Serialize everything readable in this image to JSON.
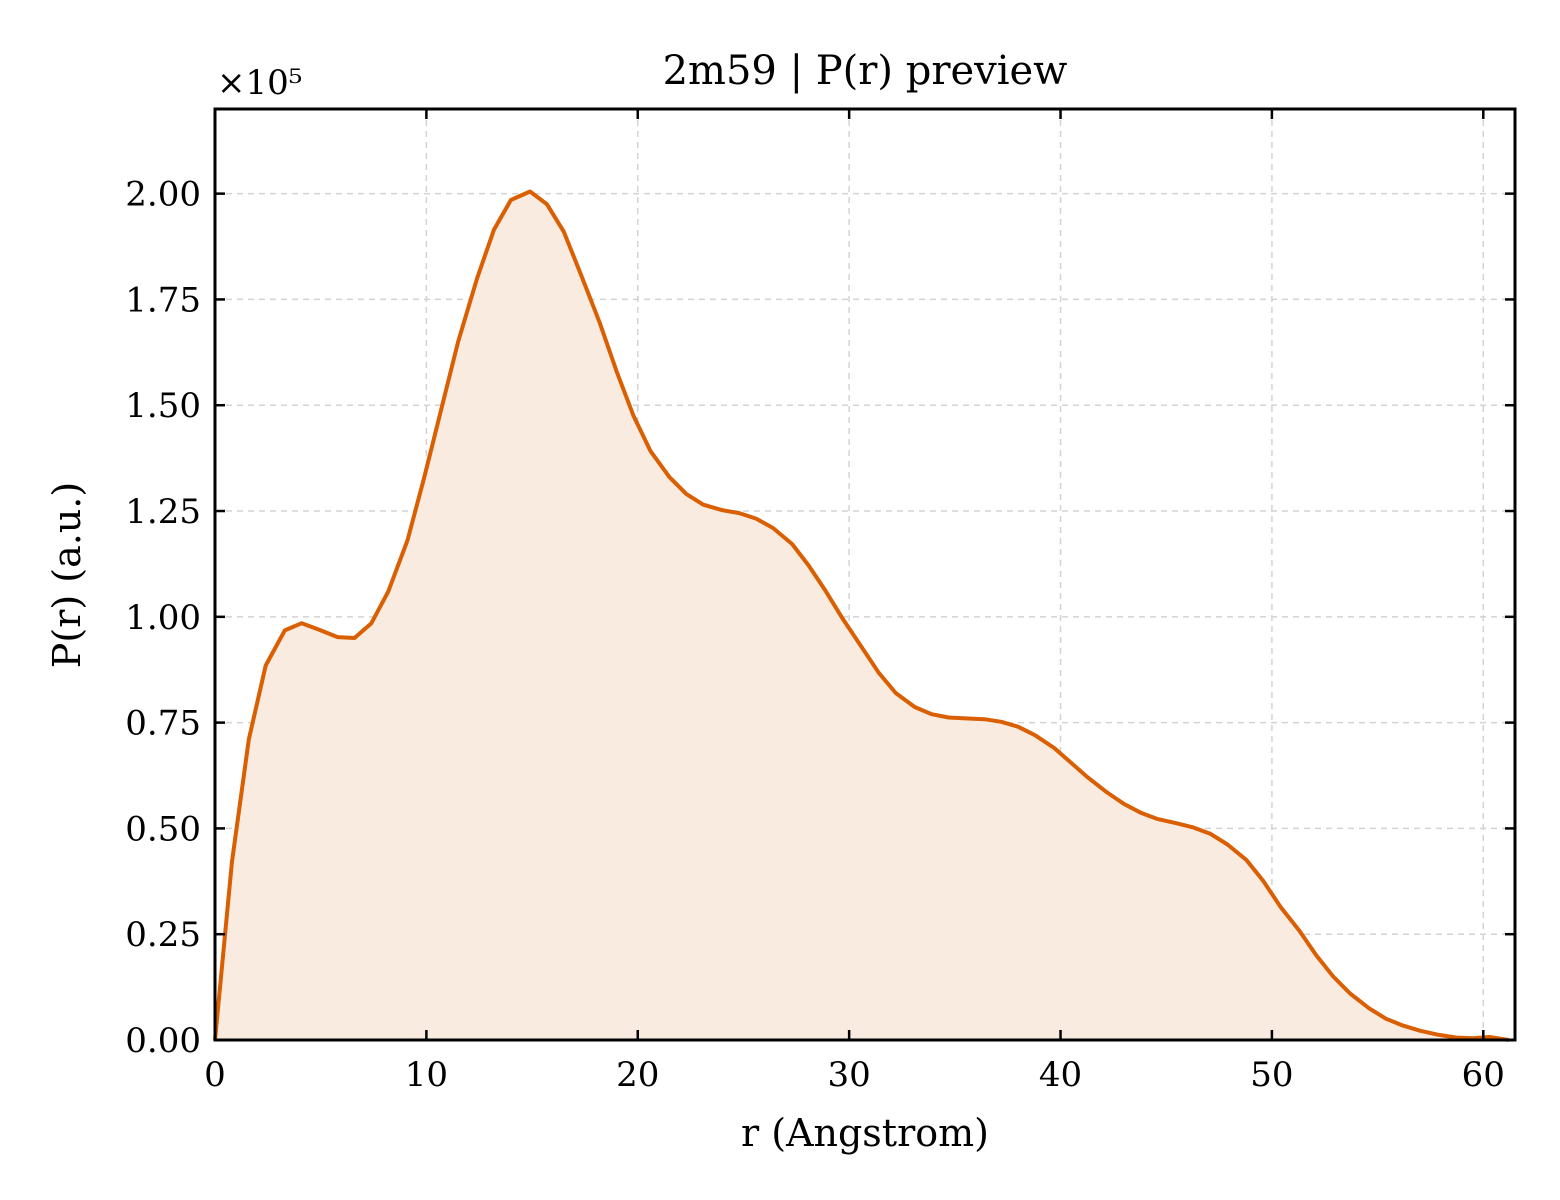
{
  "chart_data": {
    "type": "area",
    "title": "2m59 | P(r) preview",
    "xlabel": "r (Angstrom)",
    "ylabel": "P(r) (a.u.)",
    "y_multiplier_label": "×10⁵",
    "y_scale_factor": 100000,
    "xlim": [
      0,
      61.5
    ],
    "ylim": [
      0,
      2.2
    ],
    "grid": true,
    "x_ticks": [
      0,
      10,
      20,
      30,
      40,
      50,
      60
    ],
    "y_ticks": [
      0.0,
      0.25,
      0.5,
      0.75,
      1.0,
      1.25,
      1.5,
      1.75,
      2.0
    ],
    "x_tick_labels": [
      "0",
      "10",
      "20",
      "30",
      "40",
      "50",
      "60"
    ],
    "y_tick_labels": [
      "0.00",
      "0.25",
      "0.50",
      "0.75",
      "1.00",
      "1.25",
      "1.50",
      "1.75",
      "2.00"
    ],
    "line_color": "#d95f02",
    "fill_color": "#f9ebe0",
    "series": [
      {
        "x": [
          0,
          0.8,
          1.6,
          2.4,
          3.3,
          4.1,
          4.9,
          5.8,
          6.6,
          7.4,
          8.2,
          9.1,
          9.9,
          10.7,
          11.5,
          12.4,
          13.2,
          14.0,
          14.9,
          15.7,
          16.5,
          17.3,
          18.2,
          19.0,
          19.8,
          20.6,
          21.5,
          22.3,
          23.1,
          24.0,
          24.8,
          25.6,
          26.4,
          27.3,
          28.1,
          28.9,
          29.7,
          30.6,
          31.4,
          32.2,
          33.1,
          33.9,
          34.7,
          35.5,
          36.4,
          37.2,
          38.0,
          38.8,
          39.7,
          40.5,
          41.3,
          42.2,
          43.0,
          43.8,
          44.6,
          45.5,
          46.3,
          47.1,
          47.9,
          48.8,
          49.6,
          50.4,
          51.3,
          52.1,
          52.9,
          53.7,
          54.6,
          55.4,
          56.2,
          57.0,
          57.9,
          58.7,
          59.5,
          60.3,
          61.2
        ],
        "y": [
          0.0,
          0.42,
          0.71,
          0.885,
          0.968,
          0.985,
          0.97,
          0.952,
          0.95,
          0.985,
          1.06,
          1.18,
          1.33,
          1.49,
          1.65,
          1.8,
          1.915,
          1.985,
          2.005,
          1.975,
          1.91,
          1.81,
          1.695,
          1.58,
          1.475,
          1.392,
          1.33,
          1.29,
          1.265,
          1.252,
          1.245,
          1.232,
          1.21,
          1.172,
          1.12,
          1.06,
          0.995,
          0.928,
          0.868,
          0.82,
          0.787,
          0.77,
          0.762,
          0.76,
          0.758,
          0.752,
          0.74,
          0.72,
          0.69,
          0.655,
          0.62,
          0.585,
          0.558,
          0.537,
          0.522,
          0.512,
          0.502,
          0.487,
          0.462,
          0.425,
          0.375,
          0.315,
          0.258,
          0.2,
          0.15,
          0.11,
          0.075,
          0.05,
          0.034,
          0.022,
          0.012,
          0.006,
          0.004,
          0.007,
          0.0
        ]
      }
    ]
  }
}
